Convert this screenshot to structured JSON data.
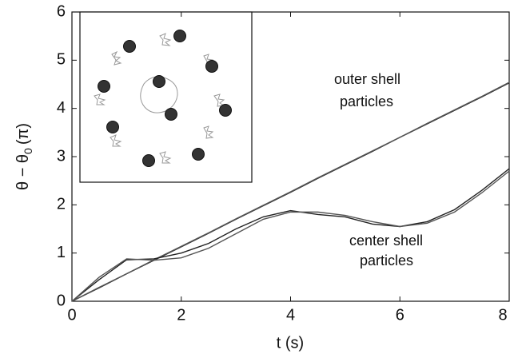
{
  "chart_data": {
    "type": "line",
    "xlabel": "t (s)",
    "ylabel": {
      "main": "θ − θ",
      "sub": "0",
      "unit": "(π)"
    },
    "x": [
      0,
      0.5,
      1,
      1.5,
      2,
      2.5,
      3,
      3.5,
      4,
      4.5,
      5,
      5.5,
      6,
      6.5,
      7,
      7.5,
      8
    ],
    "series": [
      {
        "color": "#222222",
        "values": [
          0,
          0.28,
          0.57,
          0.85,
          1.13,
          1.41,
          1.7,
          1.98,
          2.26,
          2.55,
          2.83,
          3.11,
          3.4,
          3.68,
          3.96,
          4.24,
          4.53
        ]
      },
      {
        "color": "#555555",
        "values": [
          0,
          0.29,
          0.57,
          0.86,
          1.14,
          1.42,
          1.71,
          1.99,
          2.27,
          2.56,
          2.84,
          3.12,
          3.4,
          3.69,
          3.97,
          4.25,
          4.54
        ]
      },
      {
        "color": "#222222",
        "values": [
          0,
          0.45,
          0.86,
          0.88,
          1.0,
          1.2,
          1.5,
          1.75,
          1.88,
          1.8,
          1.75,
          1.6,
          1.55,
          1.65,
          1.9,
          2.3,
          2.75
        ]
      },
      {
        "color": "#555555",
        "values": [
          0,
          0.5,
          0.88,
          0.85,
          0.9,
          1.1,
          1.4,
          1.7,
          1.85,
          1.85,
          1.78,
          1.65,
          1.55,
          1.62,
          1.85,
          2.25,
          2.7
        ]
      }
    ],
    "xlim": [
      0,
      8
    ],
    "xticks": [
      0,
      2,
      4,
      6,
      8
    ],
    "ylim": [
      0,
      6
    ],
    "yticks": [
      0,
      1,
      2,
      3,
      4,
      5,
      6
    ],
    "annotations": [
      "outer shell",
      "particles",
      "center shell",
      "particles"
    ]
  }
}
